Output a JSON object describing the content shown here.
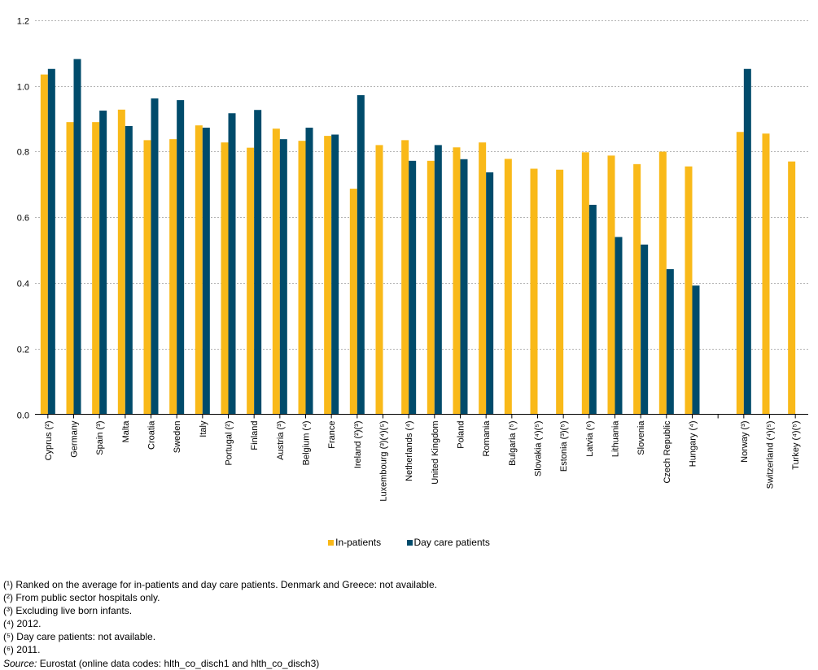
{
  "chart_data": {
    "type": "bar",
    "title": "",
    "xlabel": "",
    "ylabel": "",
    "ylim": [
      0,
      1.2
    ],
    "yticks": [
      "0.0",
      "0.2",
      "0.4",
      "0.6",
      "0.8",
      "1.0",
      "1.2"
    ],
    "grid": true,
    "legend_position": "bottom",
    "categories": [
      "Cyprus (²)",
      "Germany",
      "Spain (³)",
      "Malta",
      "Croatia",
      "Sweden",
      "Italy",
      "Portugal (²)",
      "Finland",
      "Austria (³)",
      "Belgium (⁴)",
      "France",
      "Ireland (²)(³)",
      "Luxembourg (³)(⁴)(⁵)",
      "Netherlands (⁴)",
      "United Kingdom",
      "Poland",
      "Romania",
      "Bulgaria (⁵)",
      "Slovakia (⁴)(⁵)",
      "Estonia (³)(⁵)",
      "Latvia (⁶)",
      "Lithuania",
      "Slovenia",
      "Czech Republic",
      "Hungary (⁴)",
      "",
      "Norway (³)",
      "Switzerland (⁴)(⁵)",
      "Turkey (⁴)(⁵)"
    ],
    "series": [
      {
        "name": "In-patients",
        "color": "#F9B919",
        "values": [
          1.035,
          0.89,
          0.89,
          0.928,
          0.835,
          0.838,
          0.88,
          0.828,
          0.812,
          0.87,
          0.833,
          0.848,
          0.687,
          0.82,
          0.835,
          0.772,
          0.813,
          0.828,
          0.778,
          0.748,
          0.745,
          0.798,
          0.788,
          0.762,
          0.8,
          0.755,
          null,
          0.86,
          0.855,
          0.77
        ]
      },
      {
        "name": "Day care patients",
        "color": "#004B6B",
        "values": [
          1.052,
          1.082,
          0.925,
          0.878,
          0.962,
          0.957,
          0.873,
          0.917,
          0.927,
          0.838,
          0.873,
          0.852,
          0.972,
          null,
          0.772,
          0.82,
          0.777,
          0.737,
          null,
          null,
          null,
          0.638,
          0.54,
          0.517,
          0.442,
          0.392,
          null,
          1.052,
          null,
          null
        ]
      }
    ]
  },
  "legend": {
    "items": [
      {
        "label": "In-patients",
        "color": "#F9B919"
      },
      {
        "label": "Day care patients",
        "color": "#004B6B"
      }
    ]
  },
  "notes": [
    "(¹) Ranked on the average for in-patients and day care patients. Denmark and Greece: not available.",
    "(²) From public sector hospitals only.",
    "(³) Excluding live born infants.",
    "(⁴) 2012.",
    "(⁵) Day care patients: not available.",
    "(⁶) 2011."
  ],
  "source": {
    "label": "Source:",
    "text": " Eurostat (online data codes: hlth_co_disch1 and hlth_co_disch3)"
  }
}
